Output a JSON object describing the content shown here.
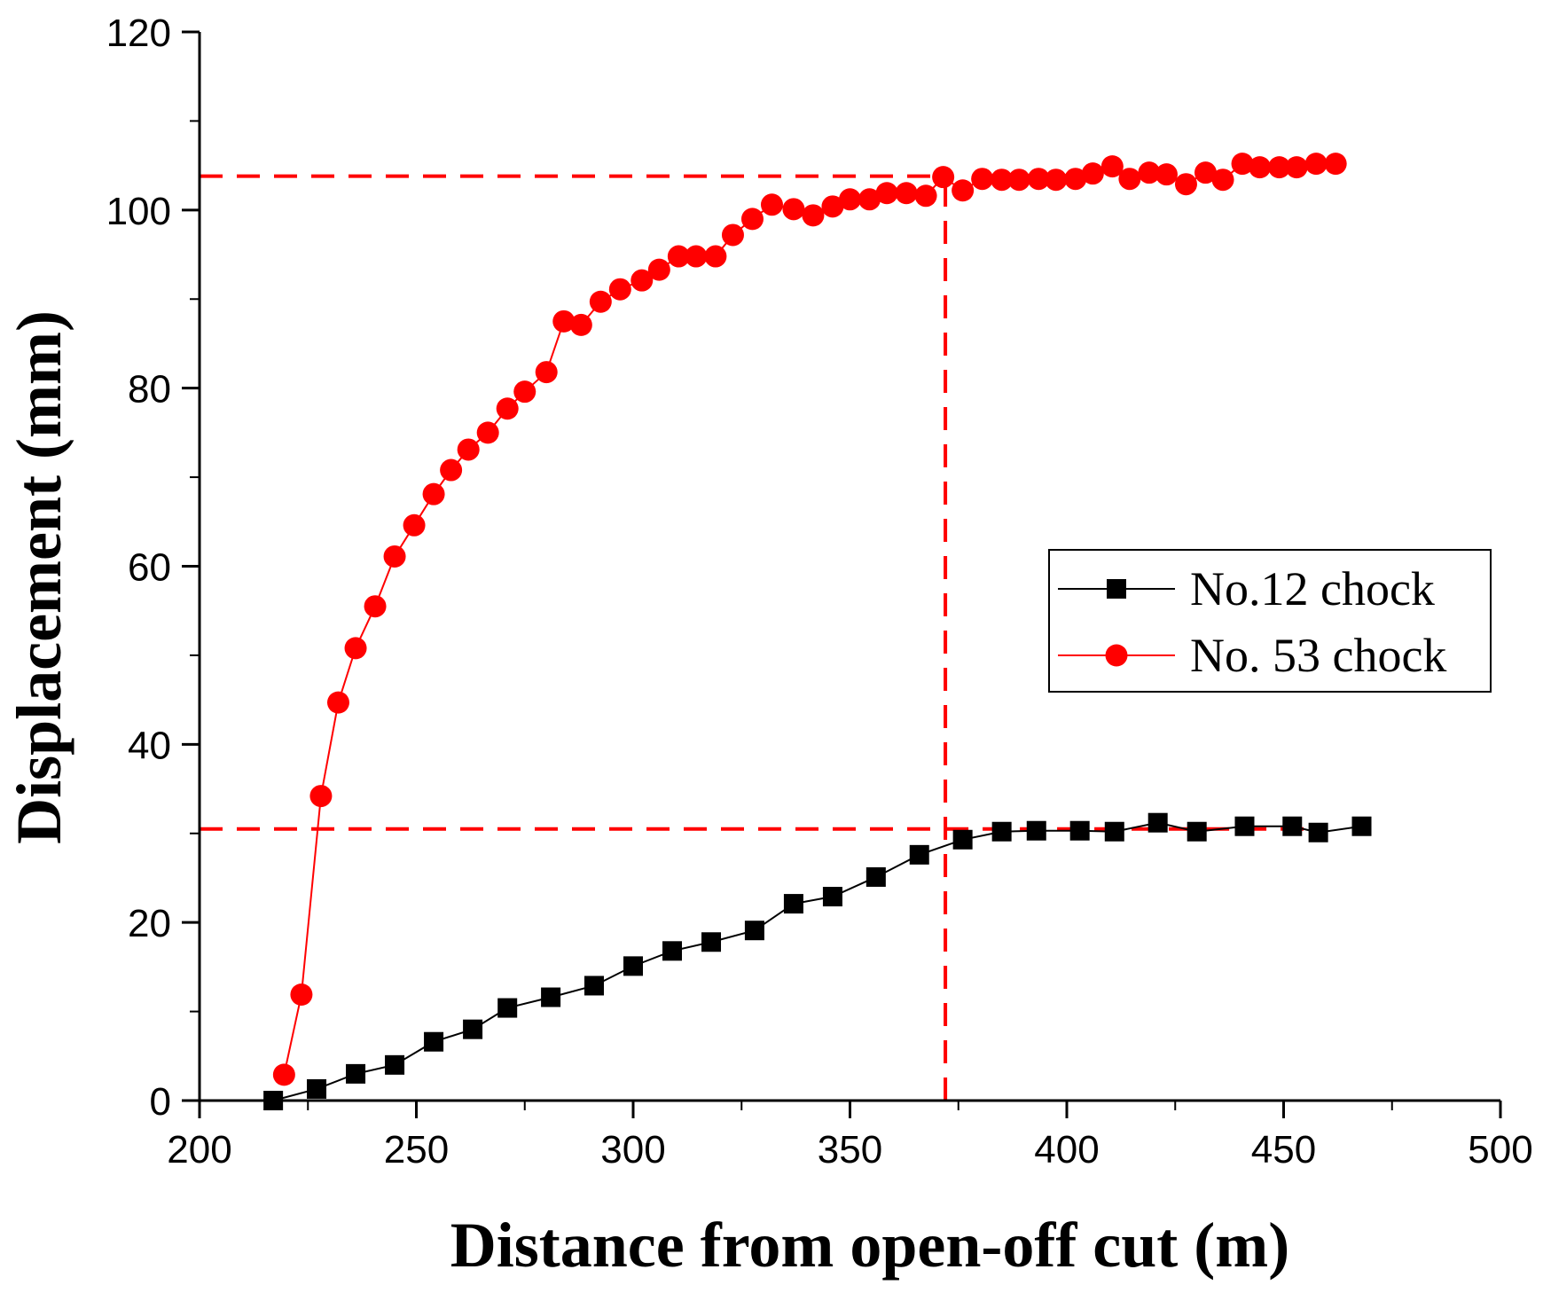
{
  "chart_data": {
    "type": "line",
    "title": "",
    "xlabel": "Distance from open-off cut (m)",
    "ylabel": "Displacement (mm)",
    "xlim": [
      200,
      500
    ],
    "ylim": [
      0,
      120
    ],
    "xticks": [
      200,
      250,
      300,
      350,
      400,
      450,
      500
    ],
    "yticks": [
      0,
      20,
      40,
      60,
      80,
      100,
      120
    ],
    "legend_position": "center-right",
    "series": [
      {
        "name": "No.12 chock",
        "color": "#000000",
        "marker": "square",
        "x": [
          217,
          227,
          236,
          245,
          254,
          263,
          271,
          281,
          291,
          300,
          309,
          318,
          328,
          337,
          346,
          356,
          366,
          376,
          385,
          393,
          403,
          411,
          421,
          430,
          441,
          452,
          458,
          468
        ],
        "y": [
          0,
          1.3,
          3,
          4,
          6.6,
          8,
          10.4,
          11.6,
          12.9,
          15.1,
          16.8,
          17.8,
          19.1,
          22.1,
          22.9,
          25.1,
          27.6,
          29.3,
          30.2,
          30.3,
          30.3,
          30.2,
          31.2,
          30.2,
          30.8,
          30.8,
          30.1,
          30.8
        ]
      },
      {
        "name": "No. 53 chock",
        "color": "#ff0000",
        "marker": "circle",
        "x": [
          219.5,
          223.5,
          228,
          232,
          236,
          240.5,
          245,
          249.5,
          254,
          258,
          262,
          266.5,
          271,
          275,
          280,
          284,
          288,
          292.5,
          297,
          302,
          306,
          310.5,
          314.5,
          319,
          323,
          327.5,
          332,
          337,
          341.5,
          346,
          350,
          354.5,
          358.5,
          363,
          367.5,
          371.5,
          376,
          380.5,
          385,
          389,
          393.5,
          397.5,
          402,
          406,
          410.5,
          414.5,
          419,
          423,
          427.5,
          432,
          436,
          440.5,
          444.5,
          449,
          453,
          457.5,
          462
        ],
        "y": [
          2.9,
          11.9,
          34.2,
          44.7,
          50.8,
          55.5,
          61.1,
          64.6,
          68.1,
          70.8,
          73.1,
          75,
          77.7,
          79.6,
          81.8,
          87.5,
          87.1,
          89.7,
          91.1,
          92.1,
          93.3,
          94.8,
          94.8,
          94.8,
          97.2,
          99,
          100.6,
          100.1,
          99.4,
          100.4,
          101.2,
          101.2,
          101.9,
          101.9,
          101.6,
          103.7,
          102.2,
          103.5,
          103.4,
          103.4,
          103.5,
          103.4,
          103.5,
          104.1,
          104.9,
          103.5,
          104.2,
          104,
          102.9,
          104.2,
          103.4,
          105.2,
          104.8,
          104.8,
          104.8,
          105.2,
          105.2
        ]
      }
    ],
    "reference_lines": [
      {
        "orientation": "horizontal",
        "y": 103.8,
        "x_from": 200,
        "x_to": 372,
        "color": "#ff0000",
        "style": "dashed"
      },
      {
        "orientation": "horizontal",
        "y": 30.5,
        "x_from": 200,
        "x_to": 372,
        "color": "#ff0000",
        "style": "dashed"
      },
      {
        "orientation": "horizontal",
        "y": 30.5,
        "x_from": 372,
        "x_to": 458,
        "color": "#ff0000",
        "style": "dashed"
      },
      {
        "orientation": "vertical",
        "x": 372,
        "y_from": 0,
        "y_to": 103.8,
        "color": "#ff0000",
        "style": "dashed"
      }
    ]
  }
}
